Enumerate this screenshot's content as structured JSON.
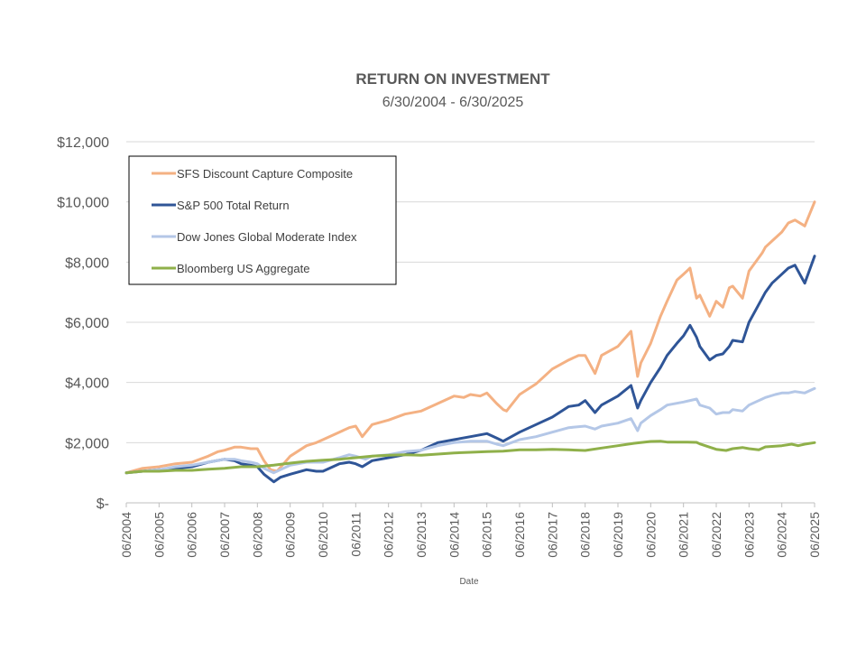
{
  "chart_data": {
    "type": "line",
    "title": "RETURN ON INVESTMENT",
    "subtitle": "6/30/2004 - 6/30/2025",
    "xlabel": "Date",
    "ylabel": "",
    "ylim": [
      0,
      12000
    ],
    "y_ticks": [
      0,
      2000,
      4000,
      6000,
      8000,
      10000,
      12000
    ],
    "y_tick_labels": [
      "$-",
      "$2,000",
      "$4,000",
      "$6,000",
      "$8,000",
      "$10,000",
      "$12,000"
    ],
    "x_range": [
      2004.5,
      2025.5
    ],
    "x_tick_labels": [
      "06/2004",
      "06/2005",
      "06/2006",
      "06/2007",
      "06/2008",
      "06/2009",
      "06/2010",
      "06/2011",
      "06/2012",
      "06/2013",
      "06/2014",
      "06/2015",
      "06/2016",
      "06/2017",
      "06/2018",
      "06/2019",
      "06/2020",
      "06/2021",
      "06/2022",
      "06/2023",
      "06/2024",
      "06/2025"
    ],
    "grid": true,
    "legend_position": "top-left",
    "series": [
      {
        "name": "SFS Discount Capture Composite",
        "color": "#f4b183",
        "x": [
          2004.5,
          2005.0,
          2005.5,
          2006.0,
          2006.5,
          2007.0,
          2007.3,
          2007.5,
          2007.8,
          2008.0,
          2008.3,
          2008.5,
          2008.7,
          2008.9,
          2009.1,
          2009.3,
          2009.5,
          2010.0,
          2010.3,
          2010.5,
          2011.0,
          2011.3,
          2011.5,
          2011.7,
          2012.0,
          2012.5,
          2013.0,
          2013.5,
          2014.0,
          2014.5,
          2014.8,
          2015.0,
          2015.3,
          2015.5,
          2015.8,
          2016.0,
          2016.1,
          2016.5,
          2017.0,
          2017.5,
          2018.0,
          2018.3,
          2018.5,
          2018.8,
          2019.0,
          2019.5,
          2019.9,
          2020.1,
          2020.2,
          2020.5,
          2020.8,
          2021.0,
          2021.3,
          2021.5,
          2021.7,
          2021.9,
          2022.0,
          2022.3,
          2022.5,
          2022.7,
          2022.9,
          2023.0,
          2023.3,
          2023.5,
          2023.7,
          2023.9,
          2024.0,
          2024.2,
          2024.5,
          2024.7,
          2024.9,
          2025.2,
          2025.5
        ],
        "values": [
          1000,
          1150,
          1200,
          1300,
          1350,
          1550,
          1700,
          1750,
          1850,
          1850,
          1800,
          1800,
          1400,
          1100,
          1050,
          1300,
          1550,
          1900,
          2000,
          2100,
          2350,
          2500,
          2550,
          2200,
          2600,
          2750,
          2950,
          3050,
          3300,
          3550,
          3500,
          3600,
          3550,
          3650,
          3300,
          3100,
          3050,
          3600,
          3950,
          4450,
          4750,
          4900,
          4900,
          4300,
          4900,
          5200,
          5700,
          4200,
          4650,
          5300,
          6200,
          6700,
          7400,
          7600,
          7800,
          6800,
          6900,
          6200,
          6700,
          6500,
          7150,
          7200,
          6800,
          7700,
          8000,
          8300,
          8500,
          8700,
          9000,
          9300,
          9400,
          9200,
          10000
        ]
      },
      {
        "name": "S&P 500 Total Return",
        "color": "#2f5597",
        "x": [
          2004.5,
          2005.0,
          2005.5,
          2006.0,
          2006.5,
          2007.0,
          2007.5,
          2007.8,
          2008.0,
          2008.3,
          2008.5,
          2008.7,
          2009.0,
          2009.2,
          2009.5,
          2010.0,
          2010.3,
          2010.5,
          2011.0,
          2011.3,
          2011.5,
          2011.7,
          2012.0,
          2012.5,
          2013.0,
          2013.5,
          2014.0,
          2014.5,
          2015.0,
          2015.5,
          2015.8,
          2016.0,
          2016.5,
          2017.0,
          2017.5,
          2018.0,
          2018.3,
          2018.5,
          2018.8,
          2019.0,
          2019.5,
          2019.9,
          2020.1,
          2020.2,
          2020.5,
          2020.8,
          2021.0,
          2021.3,
          2021.5,
          2021.7,
          2021.9,
          2022.0,
          2022.3,
          2022.5,
          2022.7,
          2022.9,
          2023.0,
          2023.3,
          2023.5,
          2023.7,
          2023.9,
          2024.0,
          2024.2,
          2024.5,
          2024.7,
          2024.9,
          2025.2,
          2025.5
        ],
        "values": [
          1000,
          1050,
          1100,
          1150,
          1200,
          1350,
          1450,
          1400,
          1300,
          1250,
          1200,
          950,
          700,
          850,
          950,
          1100,
          1050,
          1050,
          1300,
          1350,
          1300,
          1200,
          1400,
          1500,
          1600,
          1750,
          2000,
          2100,
          2200,
          2300,
          2150,
          2050,
          2350,
          2600,
          2850,
          3200,
          3250,
          3400,
          3000,
          3250,
          3550,
          3900,
          3150,
          3400,
          4000,
          4500,
          4900,
          5300,
          5550,
          5900,
          5500,
          5200,
          4750,
          4900,
          4950,
          5200,
          5400,
          5350,
          6000,
          6400,
          6800,
          7000,
          7300,
          7600,
          7800,
          7900,
          7300,
          8200
        ]
      },
      {
        "name": "Dow Jones Global Moderate Index",
        "color": "#b4c7e7",
        "x": [
          2004.5,
          2005.0,
          2005.5,
          2006.0,
          2006.5,
          2007.0,
          2007.5,
          2007.8,
          2008.0,
          2008.3,
          2008.5,
          2008.7,
          2009.0,
          2009.2,
          2009.5,
          2010.0,
          2010.5,
          2011.0,
          2011.3,
          2011.5,
          2011.8,
          2012.0,
          2012.5,
          2013.0,
          2013.5,
          2014.0,
          2014.5,
          2015.0,
          2015.5,
          2015.8,
          2016.0,
          2016.5,
          2017.0,
          2017.5,
          2018.0,
          2018.5,
          2018.8,
          2019.0,
          2019.5,
          2019.9,
          2020.1,
          2020.2,
          2020.5,
          2020.8,
          2021.0,
          2021.5,
          2021.9,
          2022.0,
          2022.3,
          2022.5,
          2022.7,
          2022.9,
          2023.0,
          2023.3,
          2023.5,
          2023.7,
          2023.9,
          2024.0,
          2024.3,
          2024.5,
          2024.7,
          2024.9,
          2025.2,
          2025.5
        ],
        "values": [
          1000,
          1050,
          1100,
          1200,
          1250,
          1350,
          1450,
          1450,
          1400,
          1350,
          1300,
          1150,
          1000,
          1100,
          1250,
          1350,
          1350,
          1500,
          1600,
          1550,
          1450,
          1550,
          1600,
          1700,
          1750,
          1900,
          2000,
          2050,
          2050,
          1950,
          1900,
          2100,
          2200,
          2350,
          2500,
          2550,
          2450,
          2550,
          2650,
          2800,
          2400,
          2650,
          2900,
          3100,
          3250,
          3350,
          3450,
          3250,
          3150,
          2950,
          3000,
          3000,
          3100,
          3050,
          3250,
          3350,
          3450,
          3500,
          3600,
          3650,
          3650,
          3700,
          3650,
          3800
        ]
      },
      {
        "name": "Bloomberg US Aggregate",
        "color": "#8fb04a",
        "x": [
          2004.5,
          2005.0,
          2005.5,
          2006.0,
          2006.5,
          2007.0,
          2007.5,
          2008.0,
          2008.5,
          2009.0,
          2009.5,
          2010.0,
          2010.5,
          2011.0,
          2011.5,
          2012.0,
          2012.5,
          2013.0,
          2013.5,
          2014.0,
          2014.5,
          2015.0,
          2015.5,
          2016.0,
          2016.5,
          2017.0,
          2017.5,
          2018.0,
          2018.5,
          2019.0,
          2019.5,
          2020.0,
          2020.5,
          2020.8,
          2021.0,
          2021.5,
          2021.9,
          2022.0,
          2022.3,
          2022.5,
          2022.8,
          2023.0,
          2023.3,
          2023.5,
          2023.8,
          2024.0,
          2024.3,
          2024.5,
          2024.8,
          2025.0,
          2025.2,
          2025.5
        ],
        "values": [
          1000,
          1050,
          1050,
          1080,
          1080,
          1120,
          1150,
          1200,
          1200,
          1250,
          1320,
          1380,
          1420,
          1450,
          1500,
          1550,
          1580,
          1600,
          1580,
          1620,
          1660,
          1680,
          1700,
          1720,
          1760,
          1760,
          1780,
          1760,
          1740,
          1820,
          1900,
          1980,
          2040,
          2050,
          2020,
          2020,
          2010,
          1960,
          1850,
          1780,
          1740,
          1800,
          1840,
          1800,
          1760,
          1860,
          1880,
          1900,
          1950,
          1900,
          1950,
          2000
        ]
      }
    ]
  }
}
